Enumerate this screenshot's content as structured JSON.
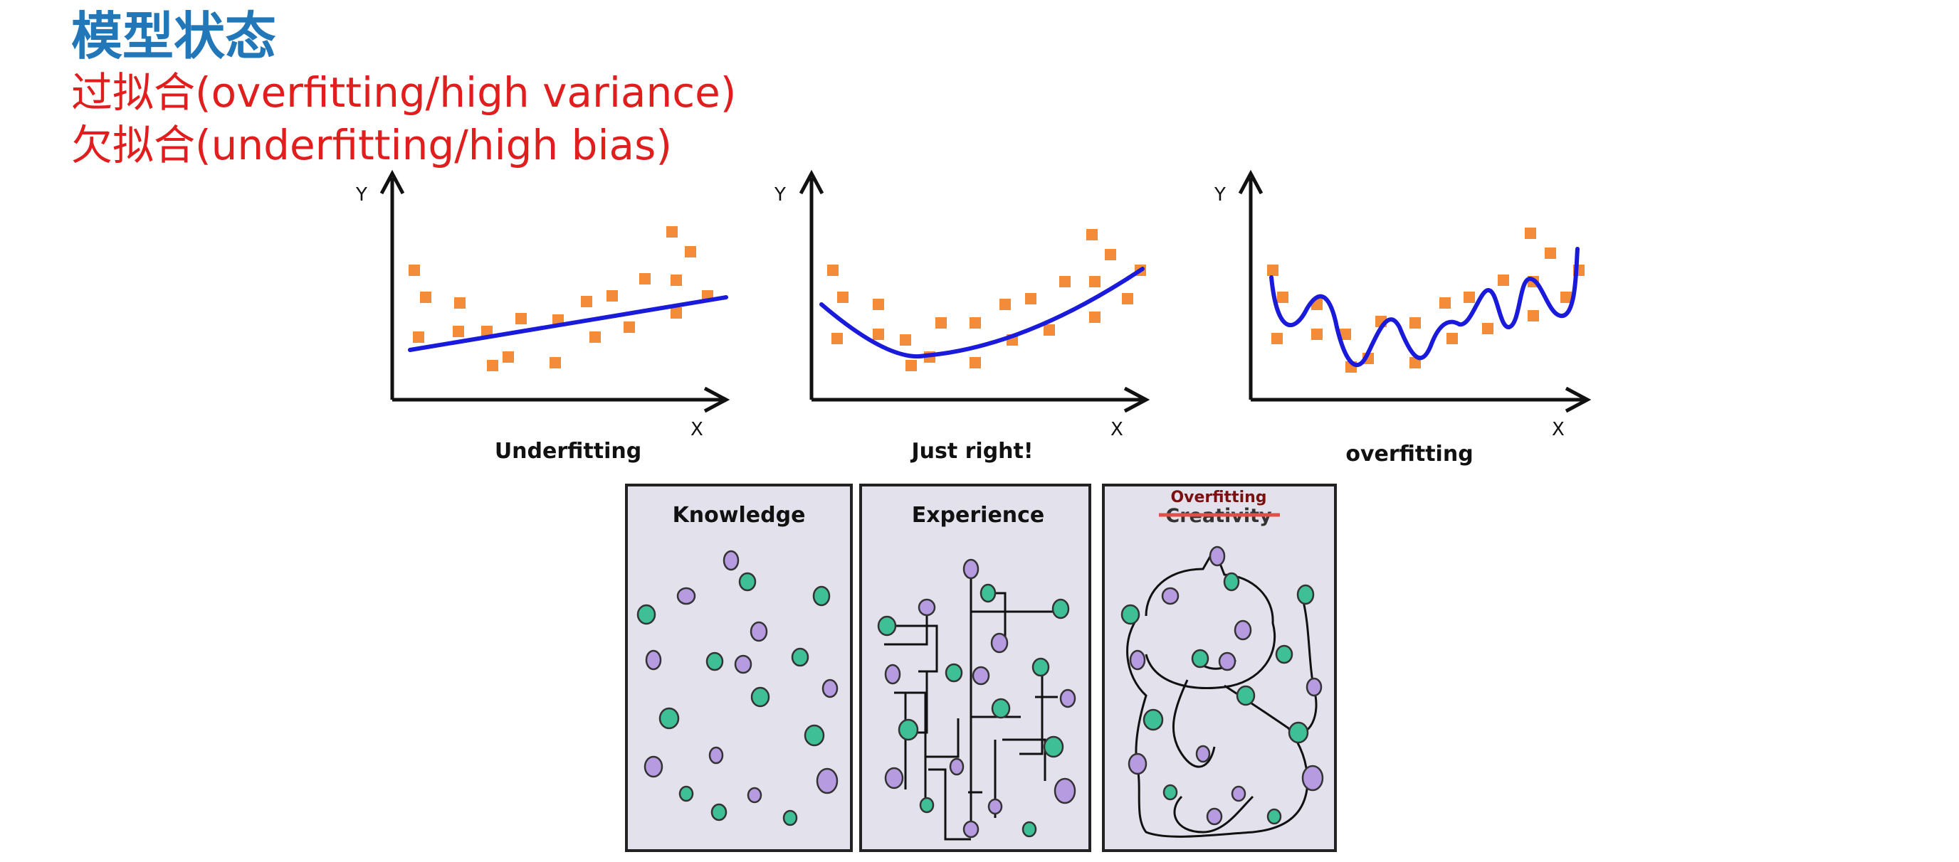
{
  "header": {
    "title": "模型状态",
    "overfitting_line": "过拟合(overfitting/high variance)",
    "underfitting_line": "欠拟合(underfitting/high bias)"
  },
  "colors": {
    "title": "#2277b8",
    "subtitle": "#e01e1e",
    "points": "#f28c38",
    "fit_line": "#1a1adb",
    "panel_bg": "#e3e2ec",
    "dot_green": "#3fbf95",
    "dot_purple": "#b79be0"
  },
  "charts": [
    {
      "caption": "Underfitting",
      "y_label": "Y",
      "x_label": "X",
      "fit": "linear"
    },
    {
      "caption": "Just right!",
      "y_label": "Y",
      "x_label": "X",
      "fit": "quadratic"
    },
    {
      "caption": "overfitting",
      "y_label": "Y",
      "x_label": "X",
      "fit": "wiggly"
    }
  ],
  "panels": [
    {
      "title": "Knowledge"
    },
    {
      "title": "Experience"
    },
    {
      "title": "Creativity",
      "overlay": "Overfitting"
    }
  ]
}
